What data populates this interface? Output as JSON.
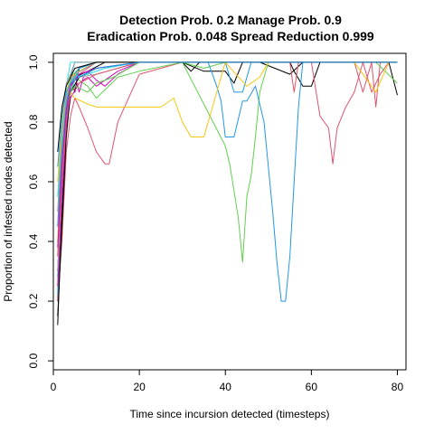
{
  "chart_data": {
    "type": "line",
    "title_line1": "Detection Prob. 0.2 Manage Prob. 0.9",
    "title_line2": "Eradication Prob. 0.048 Spread Reduction 0.999",
    "xlabel": "Time since incursion detected (timesteps)",
    "ylabel": "Proportion of infested nodes detected",
    "xlim": [
      0,
      82
    ],
    "ylim": [
      -0.03,
      1.03
    ],
    "xticks": [
      "0",
      "20",
      "40",
      "60",
      "80"
    ],
    "yticks": [
      "0.0",
      "0.2",
      "0.4",
      "0.6",
      "0.8",
      "1.0"
    ],
    "grid": false,
    "legend": "none",
    "series": [
      {
        "color": "#000000",
        "x": [
          1,
          2,
          3,
          4,
          5,
          8,
          12,
          20,
          25,
          30,
          35,
          40,
          42,
          44,
          46,
          48,
          55,
          58,
          60,
          62,
          70,
          75,
          78,
          80
        ],
        "y": [
          0.12,
          0.5,
          0.8,
          0.9,
          0.95,
          0.97,
          1.0,
          1.0,
          1.0,
          1.0,
          0.97,
          0.97,
          0.93,
          1.0,
          1.0,
          1.0,
          0.96,
          1.0,
          1.0,
          1.0,
          1.0,
          1.0,
          1.0,
          0.89
        ]
      },
      {
        "color": "#000000",
        "x": [
          1,
          2,
          3,
          4,
          5,
          6,
          10,
          15,
          25,
          30,
          32,
          34,
          36,
          40,
          50,
          55,
          56,
          58,
          60,
          62,
          65,
          70,
          75,
          80
        ],
        "y": [
          0.2,
          0.62,
          0.85,
          0.95,
          0.9,
          0.98,
          1.0,
          1.0,
          1.0,
          1.0,
          0.97,
          1.0,
          1.0,
          1.0,
          1.0,
          1.0,
          0.97,
          0.92,
          0.92,
          1.0,
          1.0,
          1.0,
          1.0,
          1.0
        ]
      },
      {
        "color": "#DF536B",
        "x": [
          1,
          2,
          3,
          4,
          5,
          6,
          8,
          10,
          12,
          13,
          15,
          20,
          30,
          40,
          50,
          60,
          62,
          64,
          65,
          66,
          68,
          70,
          72,
          74,
          76,
          78,
          80
        ],
        "y": [
          0.2,
          0.4,
          0.7,
          0.82,
          0.88,
          0.85,
          0.78,
          0.7,
          0.66,
          0.66,
          0.8,
          0.96,
          1.0,
          1.0,
          1.0,
          1.0,
          0.82,
          0.78,
          0.66,
          0.78,
          0.85,
          0.9,
          1.0,
          0.9,
          0.96,
          1.0,
          1.0
        ]
      },
      {
        "color": "#DF536B",
        "x": [
          1,
          2,
          3,
          4,
          6,
          10,
          20,
          30,
          40,
          50,
          55,
          56,
          57,
          60,
          65,
          70,
          72,
          74,
          75,
          76,
          78,
          80
        ],
        "y": [
          0.25,
          0.55,
          0.8,
          0.92,
          0.96,
          1.0,
          1.0,
          1.0,
          1.0,
          1.0,
          1.0,
          0.9,
          1.0,
          1.0,
          1.0,
          1.0,
          0.9,
          1.0,
          0.85,
          1.0,
          1.0,
          1.0
        ]
      },
      {
        "color": "#61D04F",
        "x": [
          1,
          2,
          3,
          4,
          5,
          8,
          10,
          15,
          20,
          30,
          40,
          41,
          42,
          43,
          44,
          45,
          46,
          47,
          48,
          50,
          55,
          60,
          65,
          70,
          75,
          80
        ],
        "y": [
          0.3,
          0.6,
          0.85,
          0.9,
          0.95,
          0.92,
          0.88,
          0.95,
          0.97,
          1.0,
          0.72,
          0.66,
          0.57,
          0.48,
          0.33,
          0.55,
          0.62,
          0.75,
          0.9,
          1.0,
          1.0,
          1.0,
          1.0,
          1.0,
          1.0,
          0.93
        ]
      },
      {
        "color": "#61D04F",
        "x": [
          1,
          2,
          3,
          4,
          6,
          10,
          20,
          30,
          35,
          40,
          50,
          60,
          70,
          80
        ],
        "y": [
          0.35,
          0.7,
          0.88,
          0.95,
          0.98,
          1.0,
          1.0,
          1.0,
          0.98,
          1.0,
          1.0,
          1.0,
          1.0,
          1.0
        ]
      },
      {
        "color": "#2297E6",
        "x": [
          1,
          2,
          3,
          4,
          5,
          10,
          20,
          30,
          36,
          38,
          39,
          40,
          42,
          44,
          45,
          47,
          49,
          50,
          51,
          52,
          53,
          54,
          55,
          56,
          57,
          58,
          60,
          70,
          80
        ],
        "y": [
          0.28,
          0.55,
          0.82,
          0.95,
          1.0,
          1.0,
          1.0,
          1.0,
          1.0,
          0.92,
          0.87,
          0.75,
          0.75,
          0.87,
          0.87,
          0.92,
          0.8,
          0.65,
          0.5,
          0.33,
          0.2,
          0.2,
          0.35,
          0.6,
          0.85,
          1.0,
          1.0,
          1.0,
          1.0
        ]
      },
      {
        "color": "#2297E6",
        "x": [
          1,
          2,
          3,
          4,
          6,
          10,
          20,
          30,
          40,
          42,
          44,
          46,
          48,
          50,
          60,
          70,
          80
        ],
        "y": [
          0.22,
          0.6,
          0.86,
          0.94,
          0.98,
          1.0,
          1.0,
          1.0,
          1.0,
          0.9,
          0.9,
          1.0,
          1.0,
          1.0,
          1.0,
          1.0,
          1.0
        ]
      },
      {
        "color": "#28E2E5",
        "x": [
          1,
          2,
          3,
          4,
          5,
          10,
          20,
          30,
          40,
          50,
          60,
          70,
          80
        ],
        "y": [
          0.4,
          0.75,
          0.92,
          1.0,
          1.0,
          1.0,
          1.0,
          1.0,
          1.0,
          1.0,
          1.0,
          1.0,
          1.0
        ]
      },
      {
        "color": "#28E2E5",
        "x": [
          1,
          2,
          3,
          4,
          5,
          6,
          10,
          20,
          30,
          40,
          50,
          60,
          70,
          80
        ],
        "y": [
          0.3,
          0.65,
          0.85,
          0.9,
          0.94,
          0.97,
          1.0,
          1.0,
          1.0,
          1.0,
          1.0,
          1.0,
          1.0,
          1.0
        ]
      },
      {
        "color": "#CD0BBC",
        "x": [
          1,
          2,
          3,
          4,
          5,
          6,
          7,
          8,
          10,
          12,
          15,
          20,
          30,
          40,
          50,
          60,
          70,
          80
        ],
        "y": [
          0.3,
          0.6,
          0.8,
          0.92,
          0.96,
          0.9,
          0.95,
          0.97,
          0.94,
          0.92,
          0.96,
          1.0,
          1.0,
          1.0,
          1.0,
          1.0,
          1.0,
          1.0
        ]
      },
      {
        "color": "#CD0BBC",
        "x": [
          1,
          2,
          3,
          4,
          6,
          8,
          10,
          15,
          20,
          30,
          40,
          50,
          60,
          70,
          80
        ],
        "y": [
          0.25,
          0.55,
          0.78,
          0.88,
          0.93,
          0.95,
          0.92,
          0.97,
          1.0,
          1.0,
          1.0,
          1.0,
          1.0,
          1.0,
          1.0
        ]
      },
      {
        "color": "#F5C710",
        "x": [
          1,
          2,
          3,
          4,
          5,
          8,
          10,
          12,
          15,
          20,
          25,
          28,
          30,
          32,
          35,
          40,
          50,
          60,
          70,
          75,
          78,
          80
        ],
        "y": [
          0.35,
          0.68,
          0.85,
          0.9,
          0.88,
          0.86,
          0.85,
          0.85,
          0.85,
          0.85,
          0.85,
          0.88,
          0.8,
          0.75,
          0.75,
          1.0,
          1.0,
          1.0,
          1.0,
          0.9,
          1.0,
          1.0
        ]
      },
      {
        "color": "#F5C710",
        "x": [
          1,
          2,
          3,
          4,
          6,
          10,
          20,
          30,
          40,
          45,
          48,
          50,
          60,
          70,
          80
        ],
        "y": [
          0.4,
          0.7,
          0.88,
          0.94,
          0.97,
          1.0,
          1.0,
          1.0,
          1.0,
          0.92,
          0.95,
          1.0,
          1.0,
          1.0,
          1.0
        ]
      },
      {
        "color": "#9E9E9E",
        "x": [
          1,
          2,
          3,
          4,
          5,
          10,
          20,
          30,
          40,
          50,
          60,
          70,
          80
        ],
        "y": [
          0.45,
          0.82,
          0.93,
          0.96,
          1.0,
          1.0,
          1.0,
          1.0,
          1.0,
          1.0,
          1.0,
          1.0,
          1.0
        ]
      },
      {
        "color": "#9E9E9E",
        "x": [
          1,
          2,
          3,
          4,
          6,
          10,
          15,
          20,
          30,
          40,
          50,
          60,
          70,
          80
        ],
        "y": [
          0.3,
          0.6,
          0.8,
          0.9,
          0.95,
          0.96,
          0.98,
          1.0,
          1.0,
          1.0,
          1.0,
          1.0,
          1.0,
          1.0
        ]
      },
      {
        "color": "#000000",
        "x": [
          1,
          2,
          3,
          4,
          6,
          10,
          20,
          30,
          40,
          50,
          60,
          70,
          80
        ],
        "y": [
          0.15,
          0.45,
          0.75,
          0.9,
          0.95,
          0.98,
          1.0,
          1.0,
          1.0,
          1.0,
          1.0,
          1.0,
          1.0
        ]
      },
      {
        "color": "#DF536B",
        "x": [
          1,
          2,
          3,
          4,
          6,
          10,
          20,
          30,
          40,
          50,
          60,
          70,
          80
        ],
        "y": [
          0.35,
          0.62,
          0.8,
          0.9,
          0.93,
          0.96,
          1.0,
          1.0,
          1.0,
          1.0,
          1.0,
          1.0,
          1.0
        ]
      },
      {
        "color": "#61D04F",
        "x": [
          1,
          2,
          3,
          4,
          5,
          8,
          10,
          14,
          20,
          30,
          40,
          50,
          60,
          70,
          80
        ],
        "y": [
          0.5,
          0.72,
          0.85,
          0.9,
          0.92,
          0.9,
          0.93,
          0.95,
          1.0,
          1.0,
          1.0,
          1.0,
          1.0,
          1.0,
          1.0
        ]
      },
      {
        "color": "#2297E6",
        "x": [
          1,
          2,
          3,
          4,
          6,
          10,
          20,
          30,
          40,
          50,
          60,
          70,
          80
        ],
        "y": [
          0.45,
          0.7,
          0.86,
          0.93,
          0.97,
          1.0,
          1.0,
          1.0,
          1.0,
          1.0,
          1.0,
          1.0,
          1.0
        ]
      },
      {
        "color": "#28E2E5",
        "x": [
          1,
          2,
          3,
          4,
          5,
          8,
          12,
          20,
          30,
          40,
          50,
          60,
          70,
          80
        ],
        "y": [
          0.55,
          0.78,
          0.9,
          0.94,
          0.95,
          0.96,
          0.98,
          1.0,
          1.0,
          1.0,
          1.0,
          1.0,
          1.0,
          1.0
        ]
      },
      {
        "color": "#CD0BBC",
        "x": [
          1,
          2,
          3,
          4,
          6,
          10,
          20,
          30,
          40,
          50,
          60,
          70,
          80
        ],
        "y": [
          0.38,
          0.66,
          0.84,
          0.92,
          0.96,
          0.98,
          1.0,
          1.0,
          1.0,
          1.0,
          1.0,
          1.0,
          1.0
        ]
      },
      {
        "color": "#F5C710",
        "x": [
          1,
          2,
          3,
          4,
          6,
          10,
          20,
          30,
          40,
          50,
          60,
          70,
          80
        ],
        "y": [
          0.6,
          0.8,
          0.9,
          0.95,
          0.97,
          1.0,
          1.0,
          1.0,
          1.0,
          1.0,
          1.0,
          1.0,
          1.0
        ]
      },
      {
        "color": "#9E9E9E",
        "x": [
          1,
          2,
          3,
          4,
          5,
          10,
          20,
          30,
          40,
          50,
          60,
          70,
          80
        ],
        "y": [
          0.5,
          0.76,
          0.88,
          0.93,
          0.96,
          1.0,
          1.0,
          1.0,
          1.0,
          1.0,
          1.0,
          1.0,
          1.0
        ]
      },
      {
        "color": "#000000",
        "x": [
          1,
          2,
          3,
          4,
          5,
          10,
          20,
          30,
          40,
          50,
          60,
          70,
          80
        ],
        "y": [
          0.7,
          0.85,
          0.92,
          0.95,
          0.98,
          1.0,
          1.0,
          1.0,
          1.0,
          1.0,
          1.0,
          1.0,
          1.0
        ]
      },
      {
        "color": "#2297E6",
        "x": [
          1,
          2,
          3,
          4,
          6,
          10,
          20,
          30,
          40,
          50,
          60,
          70,
          80
        ],
        "y": [
          0.65,
          0.82,
          0.9,
          0.93,
          0.95,
          0.98,
          1.0,
          1.0,
          1.0,
          1.0,
          1.0,
          1.0,
          1.0
        ]
      }
    ]
  }
}
